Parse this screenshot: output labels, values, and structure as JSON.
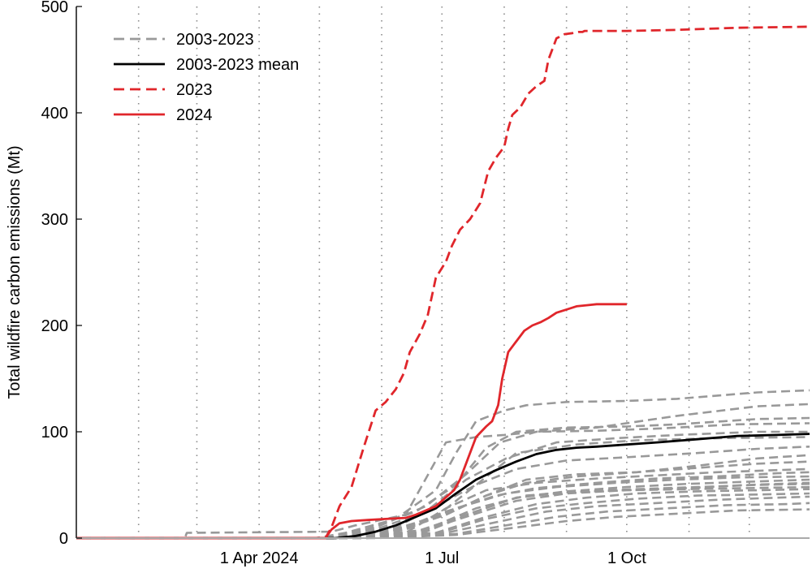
{
  "chart_data": {
    "type": "line",
    "title": "",
    "xlabel": "",
    "ylabel": "Total wildfire carbon emissions (Mt)",
    "x_unit": "day of year",
    "xlim": [
      1,
      366
    ],
    "ylim": [
      0,
      500
    ],
    "yticks": [
      0,
      100,
      200,
      300,
      400,
      500
    ],
    "xticks": [
      {
        "label": "1 Apr 2024",
        "day": 92
      },
      {
        "label": "1 Jul",
        "day": 183
      },
      {
        "label": "1 Oct",
        "day": 275
      }
    ],
    "gridlines_days": [
      32,
      61,
      92,
      122,
      153,
      183,
      214,
      245,
      275,
      306,
      336
    ],
    "grid": "vertical dotted",
    "legend_position": "top-left",
    "legend": [
      {
        "label": "2003-2023",
        "color": "#999999",
        "style": "dashed"
      },
      {
        "label": "2003-2023 mean",
        "color": "#000000",
        "style": "solid"
      },
      {
        "label": "2023",
        "color": "#e0262b",
        "style": "dashed"
      },
      {
        "label": "2024",
        "color": "#e0262b",
        "style": "solid"
      }
    ],
    "series": [
      {
        "label": "2003-2023",
        "kind": "individual",
        "color": "#999999",
        "style": "dashed",
        "x": [
          1,
          55,
          56,
          128,
          140,
          165,
          185,
          200,
          214,
          230,
          260,
          300,
          340,
          366
        ],
        "y": [
          0,
          0,
          5,
          6,
          12,
          22,
          90,
          95,
          97,
          100,
          104,
          115,
          124,
          126
        ]
      },
      {
        "label": "2003-2023",
        "kind": "individual",
        "color": "#999999",
        "style": "dashed",
        "x": [
          1,
          120,
          135,
          160,
          180,
          190,
          200,
          214,
          225,
          245,
          275,
          300,
          340,
          366
        ],
        "y": [
          0,
          0,
          5,
          18,
          45,
          80,
          110,
          120,
          125,
          128,
          129,
          131,
          137,
          139
        ]
      },
      {
        "label": "2003-2023",
        "kind": "individual",
        "color": "#999999",
        "style": "dashed",
        "x": [
          1,
          125,
          145,
          170,
          190,
          205,
          220,
          245,
          275,
          300,
          340,
          366
        ],
        "y": [
          0,
          0,
          8,
          25,
          50,
          85,
          100,
          104,
          105,
          107,
          112,
          113
        ]
      },
      {
        "label": "2003-2023",
        "kind": "individual",
        "color": "#999999",
        "style": "dashed",
        "x": [
          1,
          125,
          150,
          175,
          195,
          212,
          230,
          260,
          290,
          330,
          366
        ],
        "y": [
          0,
          0,
          10,
          30,
          60,
          90,
          100,
          101,
          103,
          107,
          108
        ]
      },
      {
        "label": "2003-2023",
        "kind": "individual",
        "color": "#999999",
        "style": "dashed",
        "x": [
          1,
          128,
          150,
          175,
          195,
          215,
          240,
          270,
          300,
          340,
          366
        ],
        "y": [
          0,
          0,
          8,
          25,
          55,
          75,
          90,
          94,
          97,
          100,
          100
        ]
      },
      {
        "label": "2003-2023",
        "kind": "individual",
        "color": "#999999",
        "style": "dashed",
        "x": [
          1,
          130,
          155,
          180,
          200,
          220,
          250,
          280,
          320,
          366
        ],
        "y": [
          0,
          0,
          6,
          20,
          50,
          80,
          88,
          92,
          94,
          95
        ]
      },
      {
        "label": "2003-2023",
        "kind": "individual",
        "color": "#999999",
        "style": "dashed",
        "x": [
          1,
          130,
          160,
          180,
          200,
          220,
          245,
          275,
          310,
          340,
          366
        ],
        "y": [
          0,
          0,
          10,
          30,
          50,
          65,
          73,
          76,
          80,
          84,
          86
        ]
      },
      {
        "label": "2003-2023",
        "kind": "individual",
        "color": "#999999",
        "style": "dashed",
        "x": [
          1,
          130,
          160,
          185,
          205,
          225,
          250,
          280,
          310,
          340,
          366
        ],
        "y": [
          0,
          0,
          8,
          22,
          40,
          55,
          60,
          62,
          68,
          75,
          78
        ]
      },
      {
        "label": "2003-2023",
        "kind": "individual",
        "color": "#999999",
        "style": "dashed",
        "x": [
          1,
          132,
          160,
          185,
          205,
          225,
          250,
          280,
          310,
          340,
          366
        ],
        "y": [
          0,
          0,
          6,
          22,
          40,
          52,
          58,
          62,
          66,
          70,
          72
        ]
      },
      {
        "label": "2003-2023",
        "kind": "individual",
        "color": "#999999",
        "style": "dashed",
        "x": [
          1,
          132,
          165,
          185,
          205,
          230,
          260,
          290,
          320,
          350,
          366
        ],
        "y": [
          0,
          0,
          5,
          28,
          45,
          52,
          56,
          59,
          62,
          64,
          65
        ]
      },
      {
        "label": "2003-2023",
        "kind": "individual",
        "color": "#999999",
        "style": "dashed",
        "x": [
          1,
          135,
          160,
          185,
          210,
          230,
          260,
          290,
          320,
          350,
          366
        ],
        "y": [
          0,
          0,
          7,
          25,
          40,
          47,
          52,
          56,
          58,
          61,
          62
        ]
      },
      {
        "label": "2003-2023",
        "kind": "individual",
        "color": "#999999",
        "style": "dashed",
        "x": [
          1,
          135,
          165,
          190,
          215,
          240,
          270,
          300,
          330,
          366
        ],
        "y": [
          0,
          0,
          8,
          28,
          42,
          48,
          52,
          55,
          57,
          58
        ]
      },
      {
        "label": "2003-2023",
        "kind": "individual",
        "color": "#999999",
        "style": "dashed",
        "x": [
          1,
          135,
          170,
          195,
          220,
          245,
          275,
          305,
          335,
          366
        ],
        "y": [
          0,
          0,
          6,
          22,
          38,
          44,
          48,
          51,
          53,
          55
        ]
      },
      {
        "label": "2003-2023",
        "kind": "individual",
        "color": "#999999",
        "style": "dashed",
        "x": [
          1,
          138,
          170,
          195,
          220,
          245,
          275,
          305,
          335,
          366
        ],
        "y": [
          0,
          0,
          5,
          20,
          35,
          42,
          45,
          47,
          50,
          52
        ]
      },
      {
        "label": "2003-2023",
        "kind": "individual",
        "color": "#999999",
        "style": "dashed",
        "x": [
          1,
          138,
          175,
          200,
          225,
          250,
          280,
          310,
          340,
          366
        ],
        "y": [
          0,
          0,
          8,
          28,
          40,
          44,
          46,
          48,
          50,
          51
        ]
      },
      {
        "label": "2003-2023",
        "kind": "individual",
        "color": "#999999",
        "style": "dashed",
        "x": [
          1,
          140,
          175,
          200,
          220,
          245,
          275,
          305,
          335,
          366
        ],
        "y": [
          0,
          0,
          6,
          25,
          38,
          43,
          45,
          46,
          47,
          48
        ]
      },
      {
        "label": "2003-2023",
        "kind": "individual",
        "color": "#999999",
        "style": "dashed",
        "x": [
          1,
          140,
          180,
          205,
          230,
          255,
          280,
          310,
          340,
          366
        ],
        "y": [
          0,
          0,
          5,
          20,
          32,
          38,
          42,
          44,
          45,
          46
        ]
      },
      {
        "label": "2003-2023",
        "kind": "individual",
        "color": "#999999",
        "style": "dashed",
        "x": [
          1,
          142,
          180,
          205,
          230,
          255,
          280,
          310,
          340,
          366
        ],
        "y": [
          0,
          0,
          4,
          18,
          28,
          33,
          37,
          40,
          41,
          42
        ]
      },
      {
        "label": "2003-2023",
        "kind": "individual",
        "color": "#999999",
        "style": "dashed",
        "x": [
          1,
          145,
          185,
          210,
          235,
          260,
          290,
          320,
          350,
          366
        ],
        "y": [
          0,
          0,
          5,
          15,
          25,
          30,
          33,
          36,
          38,
          39
        ]
      },
      {
        "label": "2003-2023",
        "kind": "individual",
        "color": "#999999",
        "style": "dashed",
        "x": [
          1,
          145,
          190,
          215,
          240,
          265,
          295,
          325,
          355,
          366
        ],
        "y": [
          0,
          0,
          4,
          12,
          20,
          25,
          28,
          31,
          32,
          33
        ]
      },
      {
        "label": "2003-2023",
        "kind": "individual",
        "color": "#999999",
        "style": "dashed",
        "x": [
          1,
          150,
          190,
          220,
          245,
          270,
          300,
          330,
          366
        ],
        "y": [
          0,
          0,
          3,
          10,
          16,
          20,
          23,
          26,
          27
        ]
      },
      {
        "label": "2003-2023 mean",
        "kind": "mean",
        "color": "#000000",
        "style": "solid",
        "x": [
          1,
          130,
          140,
          150,
          160,
          170,
          180,
          190,
          200,
          210,
          220,
          230,
          240,
          250,
          260,
          275,
          290,
          310,
          330,
          350,
          366
        ],
        "y": [
          0,
          0,
          2,
          6,
          12,
          20,
          28,
          42,
          55,
          64,
          72,
          79,
          83,
          85,
          86,
          88,
          90,
          93,
          96,
          97,
          98
        ]
      },
      {
        "label": "2023",
        "kind": "year",
        "color": "#e0262b",
        "style": "dashed",
        "x": [
          1,
          125,
          128,
          132,
          138,
          144,
          150,
          155,
          160,
          164,
          167,
          172,
          176,
          180,
          185,
          188,
          192,
          197,
          202,
          206,
          210,
          214,
          216,
          218,
          222,
          226,
          230,
          234,
          236,
          240,
          244,
          248,
          251,
          253,
          254,
          258,
          275,
          300,
          330,
          366
        ],
        "y": [
          0,
          0,
          10,
          30,
          48,
          85,
          120,
          128,
          140,
          155,
          175,
          192,
          210,
          245,
          260,
          275,
          290,
          300,
          315,
          345,
          358,
          368,
          385,
          398,
          405,
          418,
          425,
          430,
          450,
          470,
          474,
          475,
          476,
          476,
          477,
          477,
          477,
          478,
          480,
          481
        ]
      },
      {
        "label": "2024",
        "kind": "year",
        "color": "#e0262b",
        "style": "solid",
        "x": [
          1,
          125,
          128,
          132,
          138,
          146,
          155,
          165,
          170,
          175,
          180,
          183,
          186,
          189,
          192,
          196,
          200,
          205,
          208,
          211,
          213,
          216,
          220,
          224,
          228,
          232,
          236,
          240,
          245,
          250,
          255,
          260,
          265,
          275
        ],
        "y": [
          0,
          0,
          8,
          14,
          16,
          17,
          18,
          19,
          22,
          26,
          30,
          35,
          40,
          45,
          55,
          75,
          95,
          105,
          110,
          125,
          150,
          175,
          185,
          195,
          200,
          203,
          207,
          212,
          215,
          218,
          219,
          220,
          220,
          220
        ]
      }
    ]
  }
}
